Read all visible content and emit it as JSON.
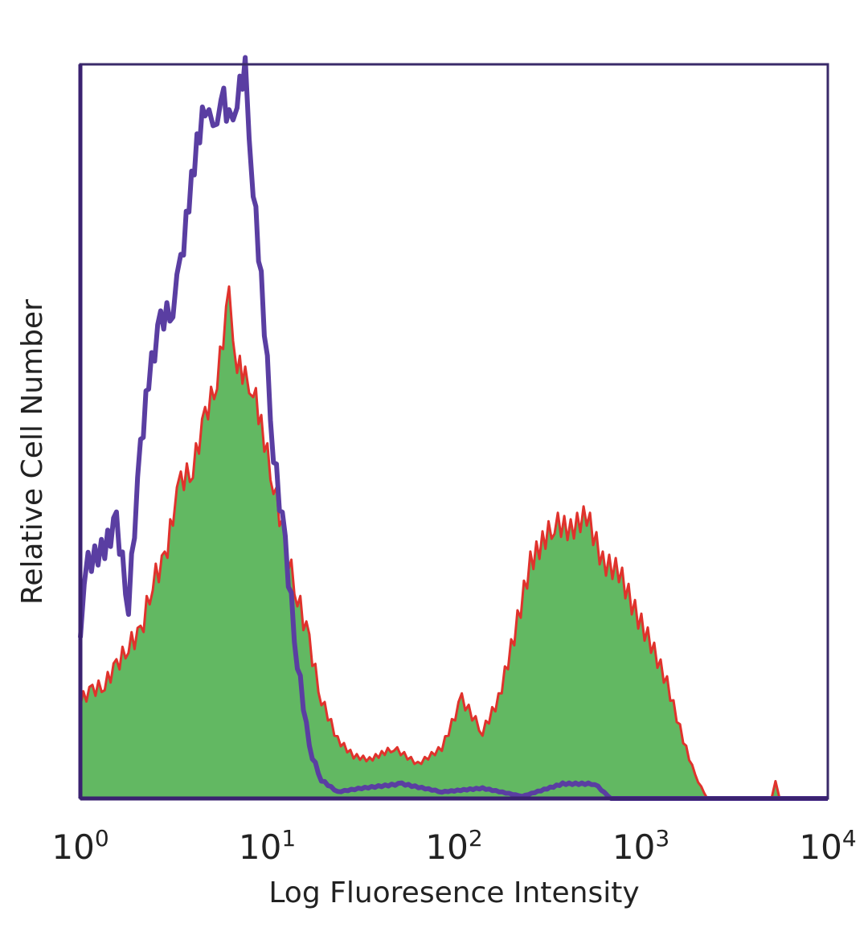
{
  "chart_data": {
    "type": "area",
    "title": "",
    "xlabel": "Log Fluoresence Intensity",
    "ylabel": "Relative Cell Number",
    "xscale": "log",
    "xlim": [
      1,
      10000
    ],
    "ylim": [
      0,
      100
    ],
    "grid": false,
    "legend": "none",
    "x_ticks": [
      {
        "base": "10",
        "exp": "0",
        "value": 1
      },
      {
        "base": "10",
        "exp": "1",
        "value": 10
      },
      {
        "base": "10",
        "exp": "2",
        "value": 100
      },
      {
        "base": "10",
        "exp": "3",
        "value": 1000
      },
      {
        "base": "10",
        "exp": "4",
        "value": 10000
      }
    ],
    "series": [
      {
        "style": "filled",
        "fill_color": "#62b862",
        "line_color": "#e0322c",
        "x": [
          1,
          1.16,
          1.35,
          1.56,
          1.81,
          2.1,
          2.44,
          2.83,
          3.13,
          3.45,
          4.0,
          4.65,
          5.39,
          6.25,
          6.9,
          7.62,
          8.41,
          9.29,
          10.8,
          12.5,
          14.5,
          16.8,
          19.5,
          23.8,
          29,
          35.3,
          47.6,
          64,
          86,
          110,
          142,
          173,
          210,
          256,
          345,
          421,
          513,
          625,
          762,
          929,
          1132,
          1380,
          1683,
          1950,
          2264,
          5000,
          5250,
          5520,
          10000
        ],
        "y": [
          13.5,
          14.6,
          15.7,
          17.9,
          21.1,
          22.2,
          29.9,
          32.1,
          38.7,
          43.0,
          45.2,
          51.8,
          57.3,
          68.2,
          59.5,
          57.3,
          56.2,
          50.7,
          43.0,
          34.3,
          27.7,
          21.1,
          13.5,
          8.0,
          5.8,
          5.3,
          6.9,
          4.7,
          6.9,
          13.5,
          9.1,
          13.5,
          22.2,
          32.1,
          37.6,
          36.5,
          38.7,
          32.1,
          31.0,
          25.5,
          21.1,
          15.7,
          8.0,
          3.1,
          0,
          0,
          2.5,
          0,
          0
        ]
      },
      {
        "style": "outline",
        "line_color": "#5a3ea2",
        "x": [
          1,
          1.1,
          1.35,
          1.56,
          1.81,
          2.1,
          2.32,
          2.69,
          3.13,
          3.45,
          3.81,
          4.21,
          4.65,
          5.13,
          5.66,
          6.25,
          6.9,
          7.62,
          8.41,
          9.29,
          10.8,
          12.5,
          14.5,
          16.8,
          19.5,
          23.8,
          32,
          52.5,
          86,
          142,
          232,
          381,
          566,
          690,
          10000
        ],
        "y": [
          23.3,
          32.0,
          34.2,
          37.5,
          26.6,
          47.4,
          57.3,
          64.9,
          67.1,
          72.6,
          81.4,
          89.0,
          94.5,
          90.1,
          96.7,
          92.3,
          95.6,
          99.4,
          83.5,
          70.3,
          47.3,
          34.2,
          18.8,
          6.8,
          2.5,
          0.9,
          1.4,
          2.0,
          0.9,
          1.4,
          0.3,
          2.0,
          2.0,
          0,
          0
        ]
      }
    ]
  }
}
